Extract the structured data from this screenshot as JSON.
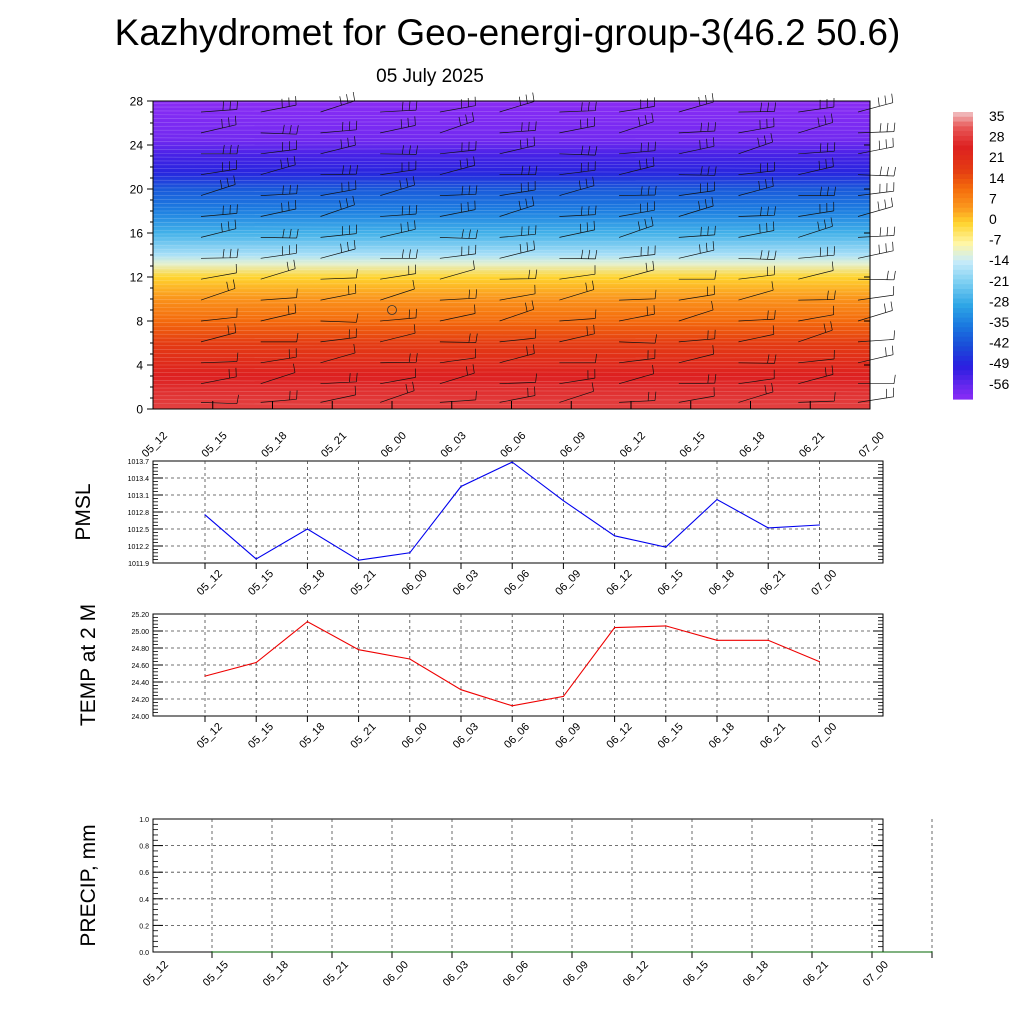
{
  "title": "Kazhydromet for Geo-energi-group-3(46.2 50.6)",
  "subtitle": "05 July 2025",
  "colorbar": {
    "labels": [
      "35",
      "28",
      "21",
      "14",
      "7",
      "0",
      "-7",
      "-14",
      "-21",
      "-28",
      "-35",
      "-42",
      "-49",
      "-56"
    ],
    "stops": [
      {
        "v": 38,
        "c": "#f2c6c8"
      },
      {
        "v": 33,
        "c": "#e85a5a"
      },
      {
        "v": 26,
        "c": "#dd2020"
      },
      {
        "v": 18,
        "c": "#e43c12"
      },
      {
        "v": 12,
        "c": "#f46a0c"
      },
      {
        "v": 5,
        "c": "#fb9a1e"
      },
      {
        "v": 0,
        "c": "#ffd42e"
      },
      {
        "v": -7,
        "c": "#fff6a6"
      },
      {
        "v": -13,
        "c": "#c9ecfa"
      },
      {
        "v": -20,
        "c": "#7fd0f2"
      },
      {
        "v": -28,
        "c": "#2ea6e6"
      },
      {
        "v": -35,
        "c": "#1a78e0"
      },
      {
        "v": -42,
        "c": "#1a4cd8"
      },
      {
        "v": -49,
        "c": "#2a1ee0"
      },
      {
        "v": -56,
        "c": "#6a28ee"
      },
      {
        "v": -60,
        "c": "#8a2cf5"
      }
    ]
  },
  "chart_data": [
    {
      "type": "heatmap",
      "name": "cross-section",
      "x_labels": [
        "05_12",
        "05_15",
        "05_18",
        "05_21",
        "06_00",
        "06_03",
        "06_06",
        "06_09",
        "06_12",
        "06_15",
        "06_18",
        "06_21",
        "07_00"
      ],
      "y_ticks": [
        "0",
        "4",
        "8",
        "12",
        "16",
        "20",
        "24",
        "28"
      ],
      "ylim": [
        0,
        28
      ],
      "temperature_profile": [
        {
          "level": 0,
          "t": 30
        },
        {
          "level": 3,
          "t": 26
        },
        {
          "level": 6,
          "t": 18
        },
        {
          "level": 8,
          "t": 12
        },
        {
          "level": 10,
          "t": 6
        },
        {
          "level": 12,
          "t": 0
        },
        {
          "level": 13.2,
          "t": -10
        },
        {
          "level": 14,
          "t": -16
        },
        {
          "level": 16,
          "t": -26
        },
        {
          "level": 18,
          "t": -34
        },
        {
          "level": 20,
          "t": -40
        },
        {
          "level": 21.5,
          "t": -48
        },
        {
          "level": 23,
          "t": -52
        },
        {
          "level": 24.5,
          "t": -57
        },
        {
          "level": 28,
          "t": -60
        }
      ]
    },
    {
      "type": "line",
      "ylabel": "PMSL",
      "categories": [
        "05_12",
        "05_15",
        "05_18",
        "05_21",
        "06_00",
        "06_03",
        "06_06",
        "06_09",
        "06_12",
        "06_15",
        "06_18",
        "06_21",
        "07_00"
      ],
      "y_ticks": [
        "1011.9",
        "1012.2",
        "1012.5",
        "1012.8",
        "1013.1",
        "1013.4",
        "1013.7"
      ],
      "ylim": [
        1011.9,
        1013.7
      ],
      "color": "#0000ee",
      "values": [
        1012.75,
        1011.97,
        1012.5,
        1011.95,
        1012.08,
        1013.25,
        1013.68,
        1013.0,
        1012.38,
        1012.18,
        1013.02,
        1012.52,
        1012.57
      ]
    },
    {
      "type": "line",
      "ylabel": "TEMP at 2 M",
      "categories": [
        "05_12",
        "05_15",
        "05_18",
        "05_21",
        "06_00",
        "06_03",
        "06_06",
        "06_09",
        "06_12",
        "06_15",
        "06_18",
        "06_21",
        "07_00"
      ],
      "y_ticks": [
        "24.00",
        "24.20",
        "24.40",
        "24.60",
        "24.80",
        "25.00",
        "25.20"
      ],
      "ylim": [
        24.0,
        25.2
      ],
      "color": "#ee0000",
      "values": [
        24.47,
        24.63,
        25.11,
        24.78,
        24.67,
        24.31,
        24.12,
        24.23,
        25.04,
        25.06,
        24.89,
        24.89,
        24.64
      ]
    },
    {
      "type": "line",
      "ylabel": "PRECIP, mm",
      "categories": [
        "05_12",
        "05_15",
        "05_18",
        "05_21",
        "06_00",
        "06_03",
        "06_06",
        "06_09",
        "06_12",
        "06_15",
        "06_18",
        "06_21",
        "07_00"
      ],
      "y_ticks": [
        "0.0",
        "0.2",
        "0.4",
        "0.6",
        "0.8",
        "1.0"
      ],
      "ylim": [
        0,
        1
      ],
      "color": "#006400",
      "values": [
        0,
        0,
        0,
        0,
        0,
        0,
        0,
        0,
        0,
        0,
        0,
        0,
        0
      ]
    }
  ]
}
